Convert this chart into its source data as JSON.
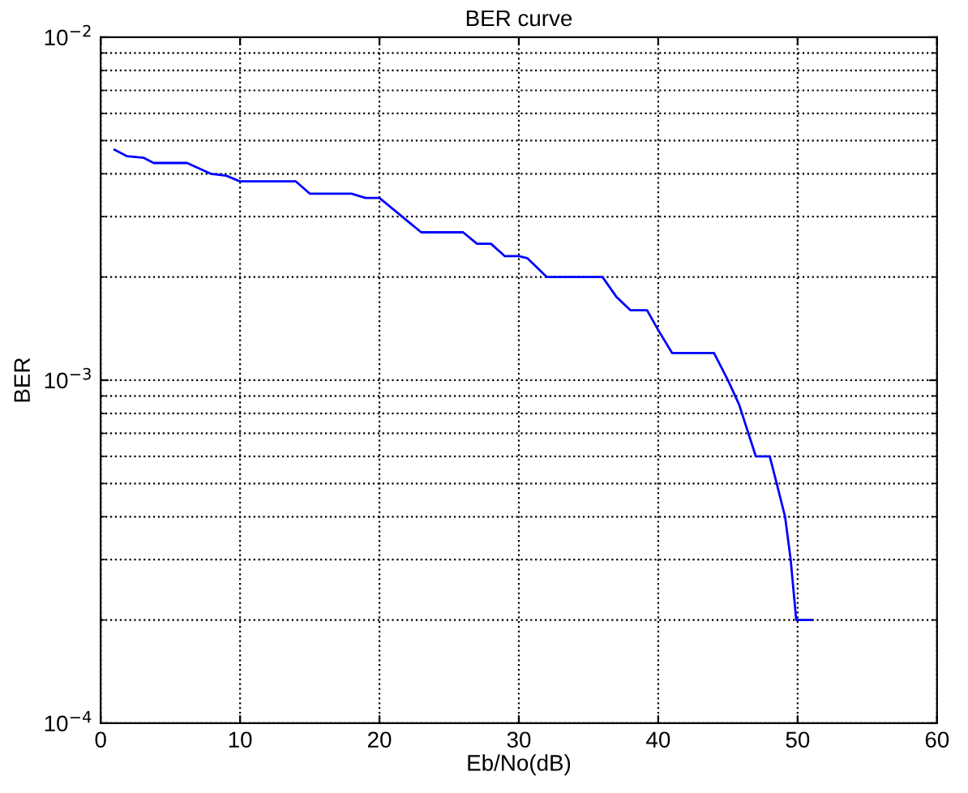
{
  "chart_data": {
    "type": "line",
    "title": "BER curve",
    "xlabel": "Eb/No(dB)",
    "ylabel": "BER",
    "x": [
      1,
      1.9,
      3.1,
      3.8,
      6.2,
      7.9,
      9,
      10,
      14,
      15,
      18,
      19,
      20,
      23,
      26,
      27,
      28,
      29,
      30,
      30.6,
      32,
      36,
      37,
      38,
      39.2,
      40,
      41,
      44,
      45,
      45.8,
      47,
      48,
      48.5,
      49.1,
      49.5,
      49.9,
      51
    ],
    "series": [
      {
        "color": "#0000ff",
        "values": [
          0.0047,
          0.0045,
          0.00445,
          0.0043,
          0.0043,
          0.004,
          0.00395,
          0.0038,
          0.0038,
          0.0035,
          0.0035,
          0.0034,
          0.0034,
          0.0027,
          0.0027,
          0.0025,
          0.0025,
          0.0023,
          0.0023,
          0.00227,
          0.002,
          0.002,
          0.00175,
          0.0016,
          0.0016,
          0.0014,
          0.0012,
          0.0012,
          0.001,
          0.00085,
          0.0006,
          0.0006,
          0.0005,
          0.0004,
          0.0003,
          0.0002,
          0.0002
        ]
      }
    ],
    "log": "y",
    "xlim": [
      0,
      60
    ],
    "ylim": [
      0.0001,
      0.01
    ],
    "xticks": [
      0,
      10,
      20,
      30,
      40,
      50,
      60
    ],
    "yticks": [
      {
        "value": 0.0001,
        "label": "10$^{−4}$"
      },
      {
        "value": 0.001,
        "label": "10$^{−3}$"
      },
      {
        "value": 0.01,
        "label": "10$^{−2}$"
      }
    ],
    "grid": true,
    "line_style": "solid",
    "marker": "none"
  }
}
